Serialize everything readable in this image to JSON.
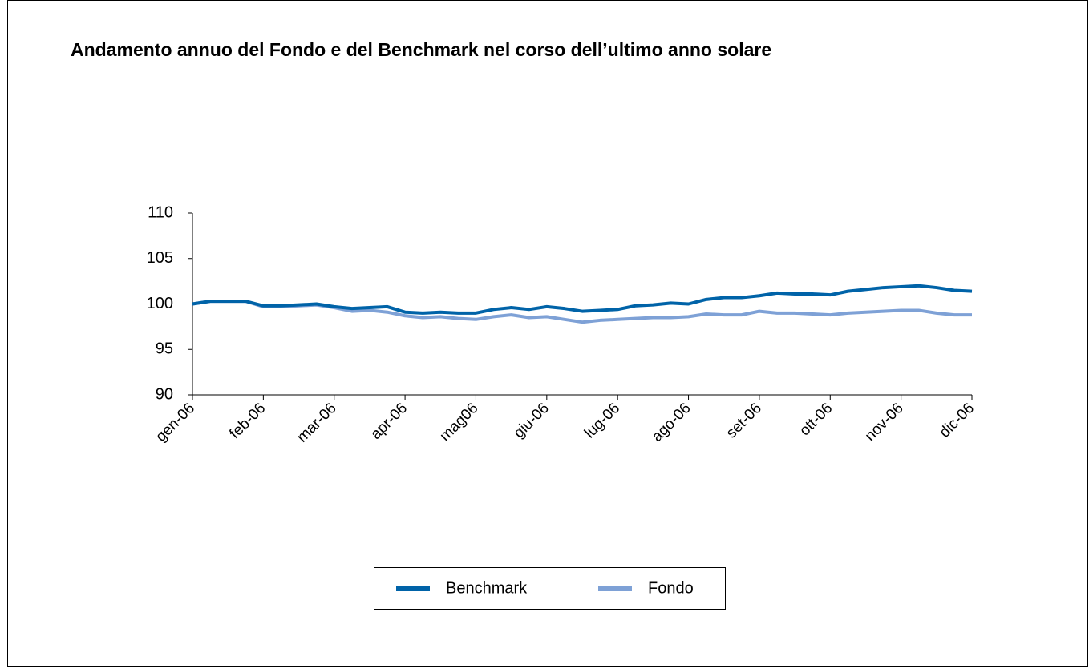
{
  "chart_data": {
    "type": "line",
    "title": "Andamento annuo del Fondo e del Benchmark nel corso dell’ultimo anno solare",
    "categories": [
      "gen-06",
      null,
      null,
      null,
      "feb-06",
      null,
      null,
      null,
      "mar-06",
      null,
      null,
      null,
      "apr-06",
      null,
      null,
      null,
      "mag06",
      null,
      null,
      null,
      "giu-06",
      null,
      null,
      null,
      "lug-06",
      null,
      null,
      null,
      "ago-06",
      null,
      null,
      null,
      "set-06",
      null,
      null,
      null,
      "ott-06",
      null,
      null,
      null,
      "nov-06",
      null,
      null,
      null,
      "dic-06"
    ],
    "series": [
      {
        "name": "Benchmark",
        "color": "#0063a8",
        "values": [
          100,
          100.3,
          100.3,
          100.3,
          99.8,
          99.8,
          99.9,
          100.0,
          99.7,
          99.5,
          99.6,
          99.7,
          99.1,
          99.0,
          99.1,
          99.0,
          99.0,
          99.4,
          99.6,
          99.4,
          99.7,
          99.5,
          99.2,
          99.3,
          99.4,
          99.8,
          99.9,
          100.1,
          100.0,
          100.5,
          100.7,
          100.7,
          100.9,
          101.2,
          101.1,
          101.1,
          101.0,
          101.4,
          101.6,
          101.8,
          101.9,
          102.0,
          101.8,
          101.5,
          101.4
        ]
      },
      {
        "name": "Fondo",
        "color": "#7ea1d6",
        "values": [
          100,
          100.3,
          100.3,
          100.3,
          99.7,
          99.7,
          99.8,
          99.9,
          99.6,
          99.2,
          99.3,
          99.1,
          98.7,
          98.5,
          98.6,
          98.4,
          98.3,
          98.6,
          98.8,
          98.5,
          98.6,
          98.3,
          98.0,
          98.2,
          98.3,
          98.4,
          98.5,
          98.5,
          98.6,
          98.9,
          98.8,
          98.8,
          99.2,
          99.0,
          99.0,
          98.9,
          98.8,
          99.0,
          99.1,
          99.2,
          99.3,
          99.3,
          99.0,
          98.8,
          98.8
        ]
      }
    ],
    "ylim": [
      90,
      110
    ],
    "yticks": [
      90,
      95,
      100,
      105,
      110
    ],
    "grid": false,
    "legend": "bottom"
  }
}
